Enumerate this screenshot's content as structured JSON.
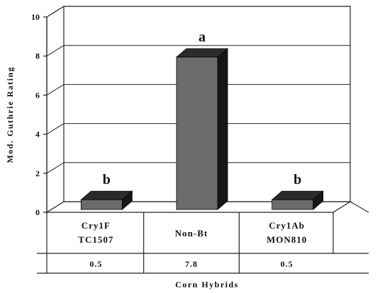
{
  "chart_data": {
    "type": "bar",
    "ylabel": "Mod. Guthrie Rating",
    "xlabel": "Corn Hybrids",
    "ylim": [
      0,
      10
    ],
    "yticks": [
      0,
      2,
      4,
      6,
      8,
      10
    ],
    "grid": true,
    "categories": [
      {
        "lines": [
          "Cry1F",
          "TC1507"
        ]
      },
      {
        "lines": [
          "Non-Bt"
        ]
      },
      {
        "lines": [
          "Cry1Ab",
          "MON810"
        ]
      }
    ],
    "values": [
      0.5,
      7.8,
      0.5
    ],
    "value_labels": [
      "0.5",
      "7.8",
      "0.5"
    ],
    "significance_letters": [
      "b",
      "a",
      "b"
    ],
    "colors": {
      "bar_front": "#6b6b6b",
      "bar_top": "#2b2b2b",
      "bar_side": "#161616",
      "axis": "#222222",
      "background": "#ffffff"
    }
  }
}
